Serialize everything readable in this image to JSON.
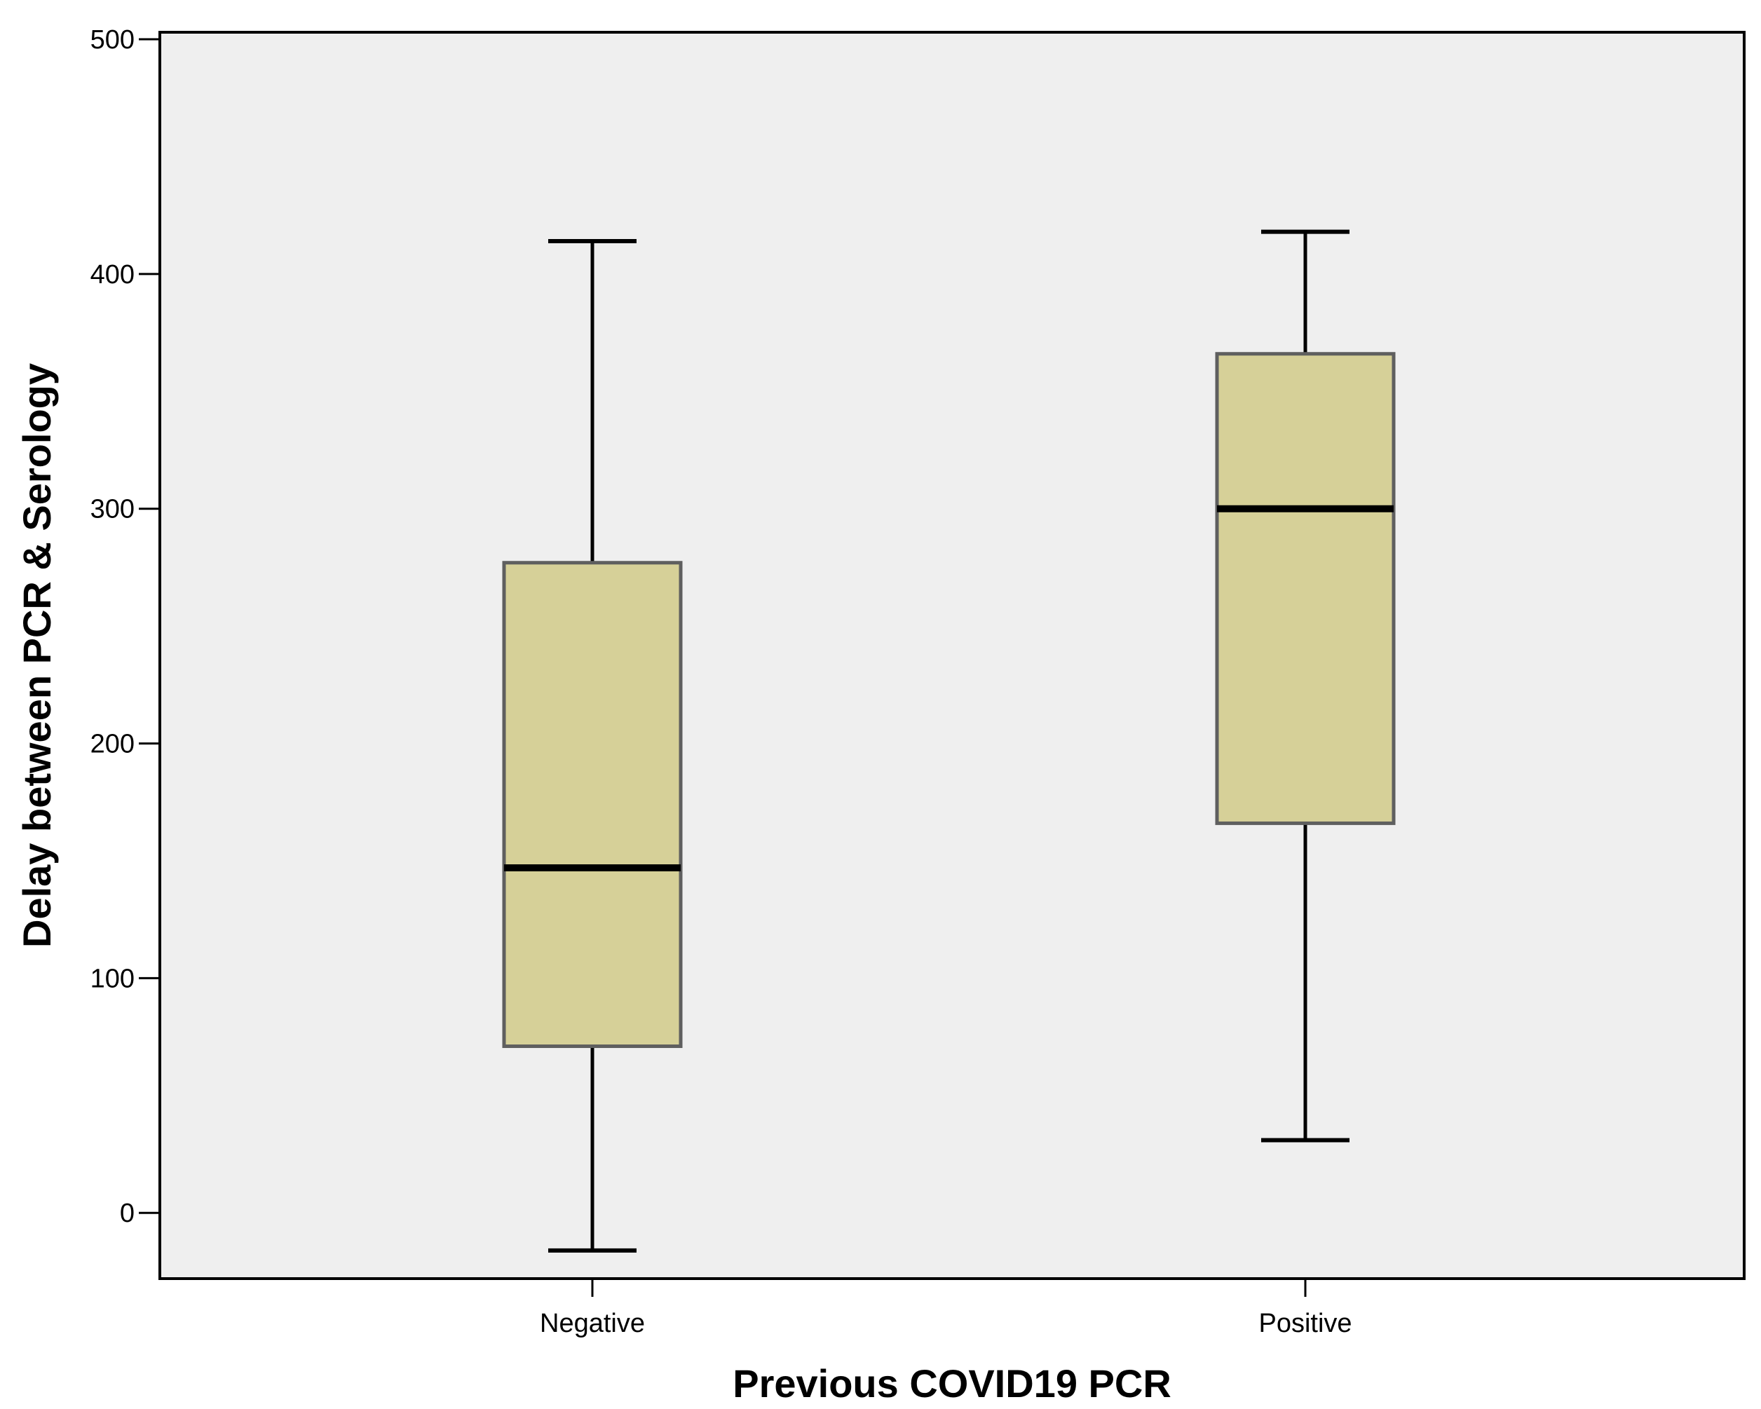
{
  "chart_data": {
    "type": "boxplot",
    "title": "",
    "xlabel": "Previous COVID19 PCR",
    "ylabel": "Delay between PCR & Serology",
    "ylim": [
      -28,
      503
    ],
    "yticks": [
      0,
      100,
      200,
      300,
      400,
      500
    ],
    "grid": false,
    "legend": "none",
    "categories": [
      "Negative",
      "Positive"
    ],
    "boxes": [
      {
        "category": "Negative",
        "whisker_low": -16,
        "q1": 71,
        "median": 147,
        "q3": 277,
        "whisker_high": 414
      },
      {
        "category": "Positive",
        "whisker_low": 31,
        "q1": 166,
        "median": 300,
        "q3": 366,
        "whisker_high": 418
      }
    ],
    "colors": {
      "plot_background": "#efefef",
      "box_fill": "#d6d098",
      "box_edge": "#5f5f5f",
      "lines": "#000000"
    }
  }
}
